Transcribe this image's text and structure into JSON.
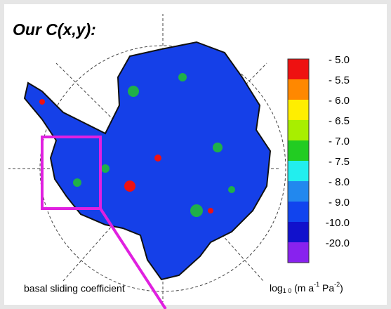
{
  "title": "Our C(x,y):",
  "caption": "basal sliding coefficient",
  "legend": {
    "unit": {
      "base": "log",
      "base_sub": "1 0",
      "rest": " (m a",
      "exp1": "-1",
      "mid": " Pa",
      "exp2": "-2",
      "end": ")"
    },
    "colors": [
      "#ee1111",
      "#ff8800",
      "#ffee00",
      "#a8ee00",
      "#22cc22",
      "#22eeee",
      "#2288ee",
      "#1144ee",
      "#1111cc",
      "#8822ee"
    ],
    "labels": [
      "- 5.0",
      "- 5.5",
      "- 6.0",
      "- 6.5",
      "- 7.0",
      "- 7.5",
      "- 8.0",
      "- 9.0",
      "-10.0",
      "-20.0"
    ]
  }
}
